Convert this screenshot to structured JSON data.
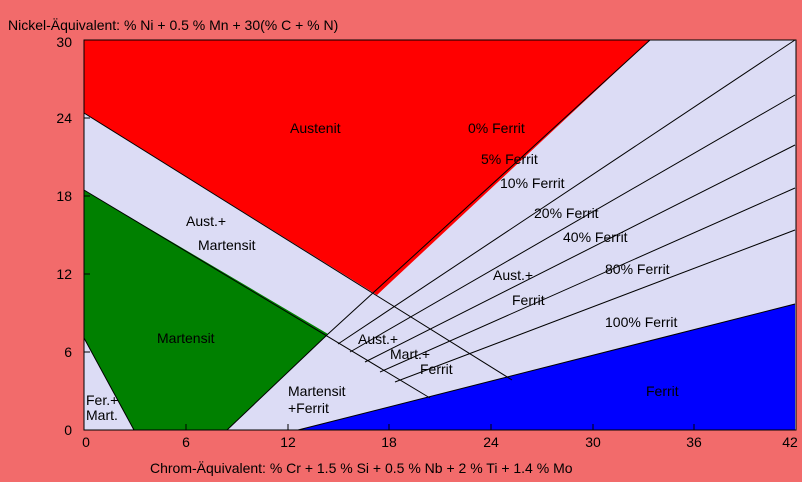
{
  "x_axis_title": "Chrom-Äquivalent: % Cr + 1.5 % Si + 0.5 % Nb + 2 % Ti + 1.4 % Mo",
  "y_axis_title": "Nickel-Äquivalent: % Ni + 0.5 % Mn + 30(% C + % N)",
  "x_ticks": [
    "0",
    "6",
    "12",
    "18",
    "24",
    "30",
    "36",
    "42"
  ],
  "y_ticks": [
    "0",
    "6",
    "12",
    "18",
    "24",
    "30"
  ],
  "x_range": [
    0,
    42
  ],
  "y_range": [
    0,
    30
  ],
  "colors": {
    "frame": "#f26b6b",
    "background": "#dcdcf5",
    "austenit": "#ff0000",
    "martensit": "#008000",
    "ferrit": "#0000ff",
    "lines": "#000000"
  },
  "regions": {
    "austenit": "Austenit",
    "martensit": "Martensit",
    "ferrit": "Ferrit",
    "aust_mart_1": "Aust.+",
    "aust_mart_2": "Martensit",
    "aust_ferrit_1": "Aust.+",
    "aust_ferrit_2": "Ferrit",
    "aust_mart_ferrit_1": "Aust.+",
    "aust_mart_ferrit_2": "Mart.+",
    "aust_mart_ferrit_3": "Ferrit",
    "mart_ferrit_1": "Martensit",
    "mart_ferrit_2": "+Ferrit",
    "fer_mart_1": "Fer.+",
    "fer_mart_2": "Mart."
  },
  "ferrit_lines": [
    "0% Ferrit",
    "5% Ferrit",
    "10% Ferrit",
    "20% Ferrit",
    "40% Ferrit",
    "80% Ferrit",
    "100% Ferrit"
  ]
}
